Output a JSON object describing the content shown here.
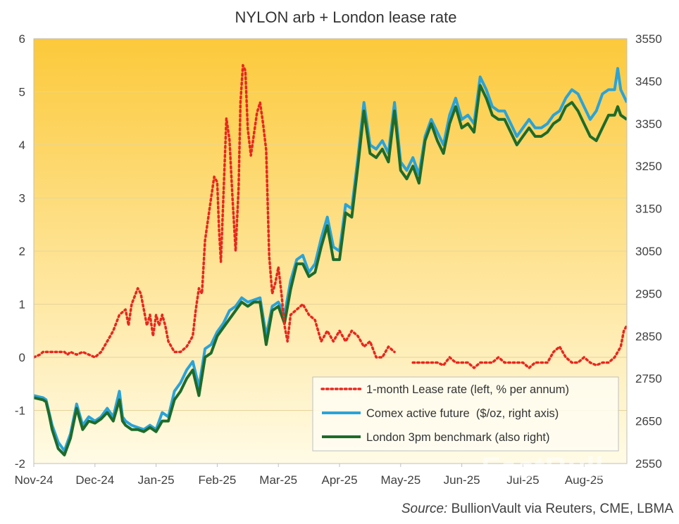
{
  "chart_data": {
    "type": "line",
    "title": "NYLON arb + London lease rate",
    "source_label": "Source:",
    "source_text": "BullionVault via Reuters, CME, LBMA",
    "watermark": "FastBull",
    "x_tick_labels": [
      "Nov-24",
      "Dec-24",
      "Jan-25",
      "Feb-25",
      "Mar-25",
      "Apr-25",
      "May-25",
      "Jun-25",
      "Jul-25",
      "Aug-25"
    ],
    "x_range": [
      0,
      9.7
    ],
    "y_left": {
      "range": [
        -2,
        6
      ],
      "ticks": [
        -2,
        -1,
        0,
        1,
        2,
        3,
        4,
        5,
        6
      ]
    },
    "y_right": {
      "range": [
        2550,
        3550
      ],
      "ticks": [
        2550,
        2650,
        2750,
        2850,
        2950,
        3050,
        3150,
        3250,
        3350,
        3450,
        3550
      ]
    },
    "colors": {
      "lease": "#e8281e",
      "comex": "#2aa3d8",
      "london": "#1e6b2a",
      "bg_top": "#fcc93a",
      "bg_bottom": "#fffbe6"
    },
    "series": [
      {
        "name": "1-month Lease rate (left, % per annum)",
        "axis": "left",
        "style": "dotted",
        "x": [
          0,
          0.1,
          0.15,
          0.2,
          0.3,
          0.4,
          0.5,
          0.55,
          0.6,
          0.7,
          0.8,
          0.9,
          1.0,
          1.1,
          1.2,
          1.3,
          1.4,
          1.5,
          1.55,
          1.6,
          1.7,
          1.75,
          1.8,
          1.85,
          1.9,
          1.95,
          2.0,
          2.05,
          2.1,
          2.15,
          2.2,
          2.3,
          2.4,
          2.5,
          2.6,
          2.65,
          2.7,
          2.75,
          2.8,
          2.85,
          2.9,
          2.95,
          3.0,
          3.03,
          3.06,
          3.1,
          3.15,
          3.2,
          3.25,
          3.3,
          3.35,
          3.38,
          3.42,
          3.46,
          3.5,
          3.55,
          3.6,
          3.65,
          3.7,
          3.75,
          3.8,
          3.85,
          3.9,
          3.95,
          4.0,
          4.05,
          4.1,
          4.15,
          4.2,
          4.3,
          4.4,
          4.5,
          4.6,
          4.7,
          4.8,
          4.9,
          5.0,
          5.1,
          5.2,
          5.3,
          5.4,
          5.5,
          5.6,
          5.7,
          5.8,
          5.9,
          6.0,
          6.2,
          6.3,
          6.4,
          6.5,
          6.6,
          6.7,
          6.8,
          6.9,
          7.0,
          7.1,
          7.2,
          7.3,
          7.4,
          7.5,
          7.6,
          7.7,
          7.8,
          7.9,
          8.0,
          8.1,
          8.2,
          8.3,
          8.4,
          8.5,
          8.6,
          8.7,
          8.8,
          8.9,
          9.0,
          9.1,
          9.2,
          9.3,
          9.4,
          9.5,
          9.55,
          9.6,
          9.65,
          9.7
        ],
        "values": [
          0,
          0.05,
          0.1,
          0.1,
          0.1,
          0.1,
          0.1,
          0.05,
          0.1,
          0.05,
          0.1,
          0.05,
          0,
          0.1,
          0.3,
          0.5,
          0.8,
          0.9,
          0.6,
          1.0,
          1.3,
          1.2,
          0.9,
          0.6,
          0.8,
          0.4,
          0.8,
          0.6,
          0.8,
          0.6,
          0.3,
          0.1,
          0.1,
          0.2,
          0.4,
          0.9,
          1.3,
          1.2,
          2.2,
          2.6,
          3.0,
          3.4,
          3.3,
          2.4,
          1.8,
          3.0,
          4.5,
          4.1,
          3.0,
          2.0,
          3.2,
          4.8,
          5.5,
          5.4,
          4.3,
          3.8,
          4.2,
          4.6,
          4.8,
          4.4,
          3.9,
          1.9,
          1.2,
          1.4,
          1.7,
          1.2,
          0.6,
          0.3,
          0.8,
          0.9,
          1.0,
          0.8,
          0.7,
          0.3,
          0.5,
          0.3,
          0.5,
          0.3,
          0.5,
          0.4,
          0.2,
          0.3,
          0,
          0,
          0.2,
          0.1,
          null,
          -0.1,
          -0.1,
          -0.1,
          -0.1,
          -0.1,
          -0.15,
          0,
          -0.1,
          -0.1,
          -0.1,
          -0.2,
          -0.1,
          -0.1,
          -0.1,
          0,
          -0.1,
          -0.1,
          -0.1,
          -0.1,
          -0.2,
          -0.1,
          -0.1,
          -0.1,
          0.1,
          0.2,
          0,
          -0.1,
          -0.1,
          0,
          -0.1,
          -0.15,
          -0.1,
          -0.1,
          0,
          0.1,
          0.2,
          0.5,
          0.6
        ]
      },
      {
        "name": "Comex active future  ($/oz, right axis)",
        "axis": "right",
        "style": "solid",
        "x": [
          0,
          0.15,
          0.2,
          0.25,
          0.3,
          0.4,
          0.5,
          0.6,
          0.7,
          0.8,
          0.9,
          1.0,
          1.1,
          1.2,
          1.3,
          1.4,
          1.45,
          1.5,
          1.6,
          1.7,
          1.8,
          1.9,
          2.0,
          2.1,
          2.2,
          2.3,
          2.4,
          2.5,
          2.6,
          2.7,
          2.8,
          2.9,
          3.0,
          3.1,
          3.2,
          3.3,
          3.4,
          3.5,
          3.6,
          3.7,
          3.8,
          3.9,
          4.0,
          4.1,
          4.2,
          4.3,
          4.4,
          4.5,
          4.6,
          4.7,
          4.8,
          4.9,
          5.0,
          5.1,
          5.2,
          5.3,
          5.4,
          5.5,
          5.6,
          5.7,
          5.8,
          5.9,
          6.0,
          6.1,
          6.2,
          6.3,
          6.4,
          6.5,
          6.6,
          6.7,
          6.8,
          6.9,
          7.0,
          7.1,
          7.2,
          7.3,
          7.4,
          7.5,
          7.6,
          7.7,
          7.8,
          7.9,
          8.0,
          8.1,
          8.2,
          8.3,
          8.4,
          8.5,
          8.6,
          8.7,
          8.8,
          8.9,
          9.0,
          9.1,
          9.2,
          9.3,
          9.4,
          9.5,
          9.55,
          9.6,
          9.7
        ],
        "values": [
          2710,
          2705,
          2700,
          2670,
          2640,
          2600,
          2580,
          2620,
          2690,
          2640,
          2660,
          2650,
          2660,
          2680,
          2660,
          2720,
          2660,
          2650,
          2640,
          2635,
          2630,
          2640,
          2630,
          2670,
          2660,
          2720,
          2740,
          2770,
          2790,
          2730,
          2820,
          2830,
          2860,
          2880,
          2910,
          2920,
          2940,
          2930,
          2935,
          2940,
          2850,
          2920,
          2930,
          2900,
          2980,
          3030,
          3040,
          3000,
          3020,
          3080,
          3130,
          3060,
          3050,
          3160,
          3150,
          3270,
          3400,
          3300,
          3290,
          3310,
          3280,
          3400,
          3260,
          3240,
          3270,
          3230,
          3320,
          3360,
          3330,
          3300,
          3370,
          3410,
          3360,
          3370,
          3350,
          3460,
          3430,
          3390,
          3380,
          3380,
          3350,
          3320,
          3340,
          3360,
          3340,
          3340,
          3350,
          3370,
          3380,
          3410,
          3430,
          3420,
          3390,
          3360,
          3380,
          3420,
          3430,
          3430,
          3480,
          3430,
          3400
        ]
      },
      {
        "name": "London 3pm benchmark (also right)",
        "axis": "right",
        "style": "solid",
        "x": [
          0,
          0.15,
          0.2,
          0.25,
          0.3,
          0.4,
          0.5,
          0.6,
          0.7,
          0.8,
          0.9,
          1.0,
          1.1,
          1.2,
          1.3,
          1.4,
          1.45,
          1.5,
          1.6,
          1.7,
          1.8,
          1.9,
          2.0,
          2.1,
          2.2,
          2.3,
          2.4,
          2.5,
          2.6,
          2.7,
          2.8,
          2.9,
          3.0,
          3.1,
          3.2,
          3.3,
          3.4,
          3.5,
          3.6,
          3.7,
          3.8,
          3.9,
          4.0,
          4.1,
          4.2,
          4.3,
          4.4,
          4.5,
          4.6,
          4.7,
          4.8,
          4.9,
          5.0,
          5.1,
          5.2,
          5.3,
          5.4,
          5.5,
          5.6,
          5.7,
          5.8,
          5.9,
          6.0,
          6.1,
          6.2,
          6.3,
          6.4,
          6.5,
          6.6,
          6.7,
          6.8,
          6.9,
          7.0,
          7.1,
          7.2,
          7.3,
          7.4,
          7.5,
          7.6,
          7.7,
          7.8,
          7.9,
          8.0,
          8.1,
          8.2,
          8.3,
          8.4,
          8.5,
          8.6,
          8.7,
          8.8,
          8.9,
          9.0,
          9.1,
          9.2,
          9.3,
          9.4,
          9.5,
          9.55,
          9.6,
          9.7
        ],
        "values": [
          2705,
          2700,
          2695,
          2665,
          2630,
          2585,
          2570,
          2610,
          2680,
          2630,
          2650,
          2645,
          2655,
          2670,
          2650,
          2700,
          2650,
          2640,
          2630,
          2630,
          2625,
          2635,
          2625,
          2650,
          2650,
          2700,
          2720,
          2750,
          2770,
          2710,
          2800,
          2810,
          2850,
          2870,
          2890,
          2910,
          2930,
          2920,
          2930,
          2930,
          2830,
          2910,
          2920,
          2880,
          2960,
          3020,
          3020,
          2990,
          3000,
          3060,
          3110,
          3030,
          3030,
          3140,
          3130,
          3250,
          3380,
          3280,
          3270,
          3290,
          3260,
          3380,
          3240,
          3220,
          3250,
          3210,
          3310,
          3350,
          3310,
          3280,
          3350,
          3390,
          3340,
          3350,
          3330,
          3440,
          3410,
          3370,
          3360,
          3360,
          3330,
          3300,
          3320,
          3340,
          3320,
          3320,
          3330,
          3350,
          3360,
          3390,
          3400,
          3380,
          3350,
          3320,
          3310,
          3340,
          3370,
          3370,
          3390,
          3370,
          3360
        ]
      }
    ]
  }
}
